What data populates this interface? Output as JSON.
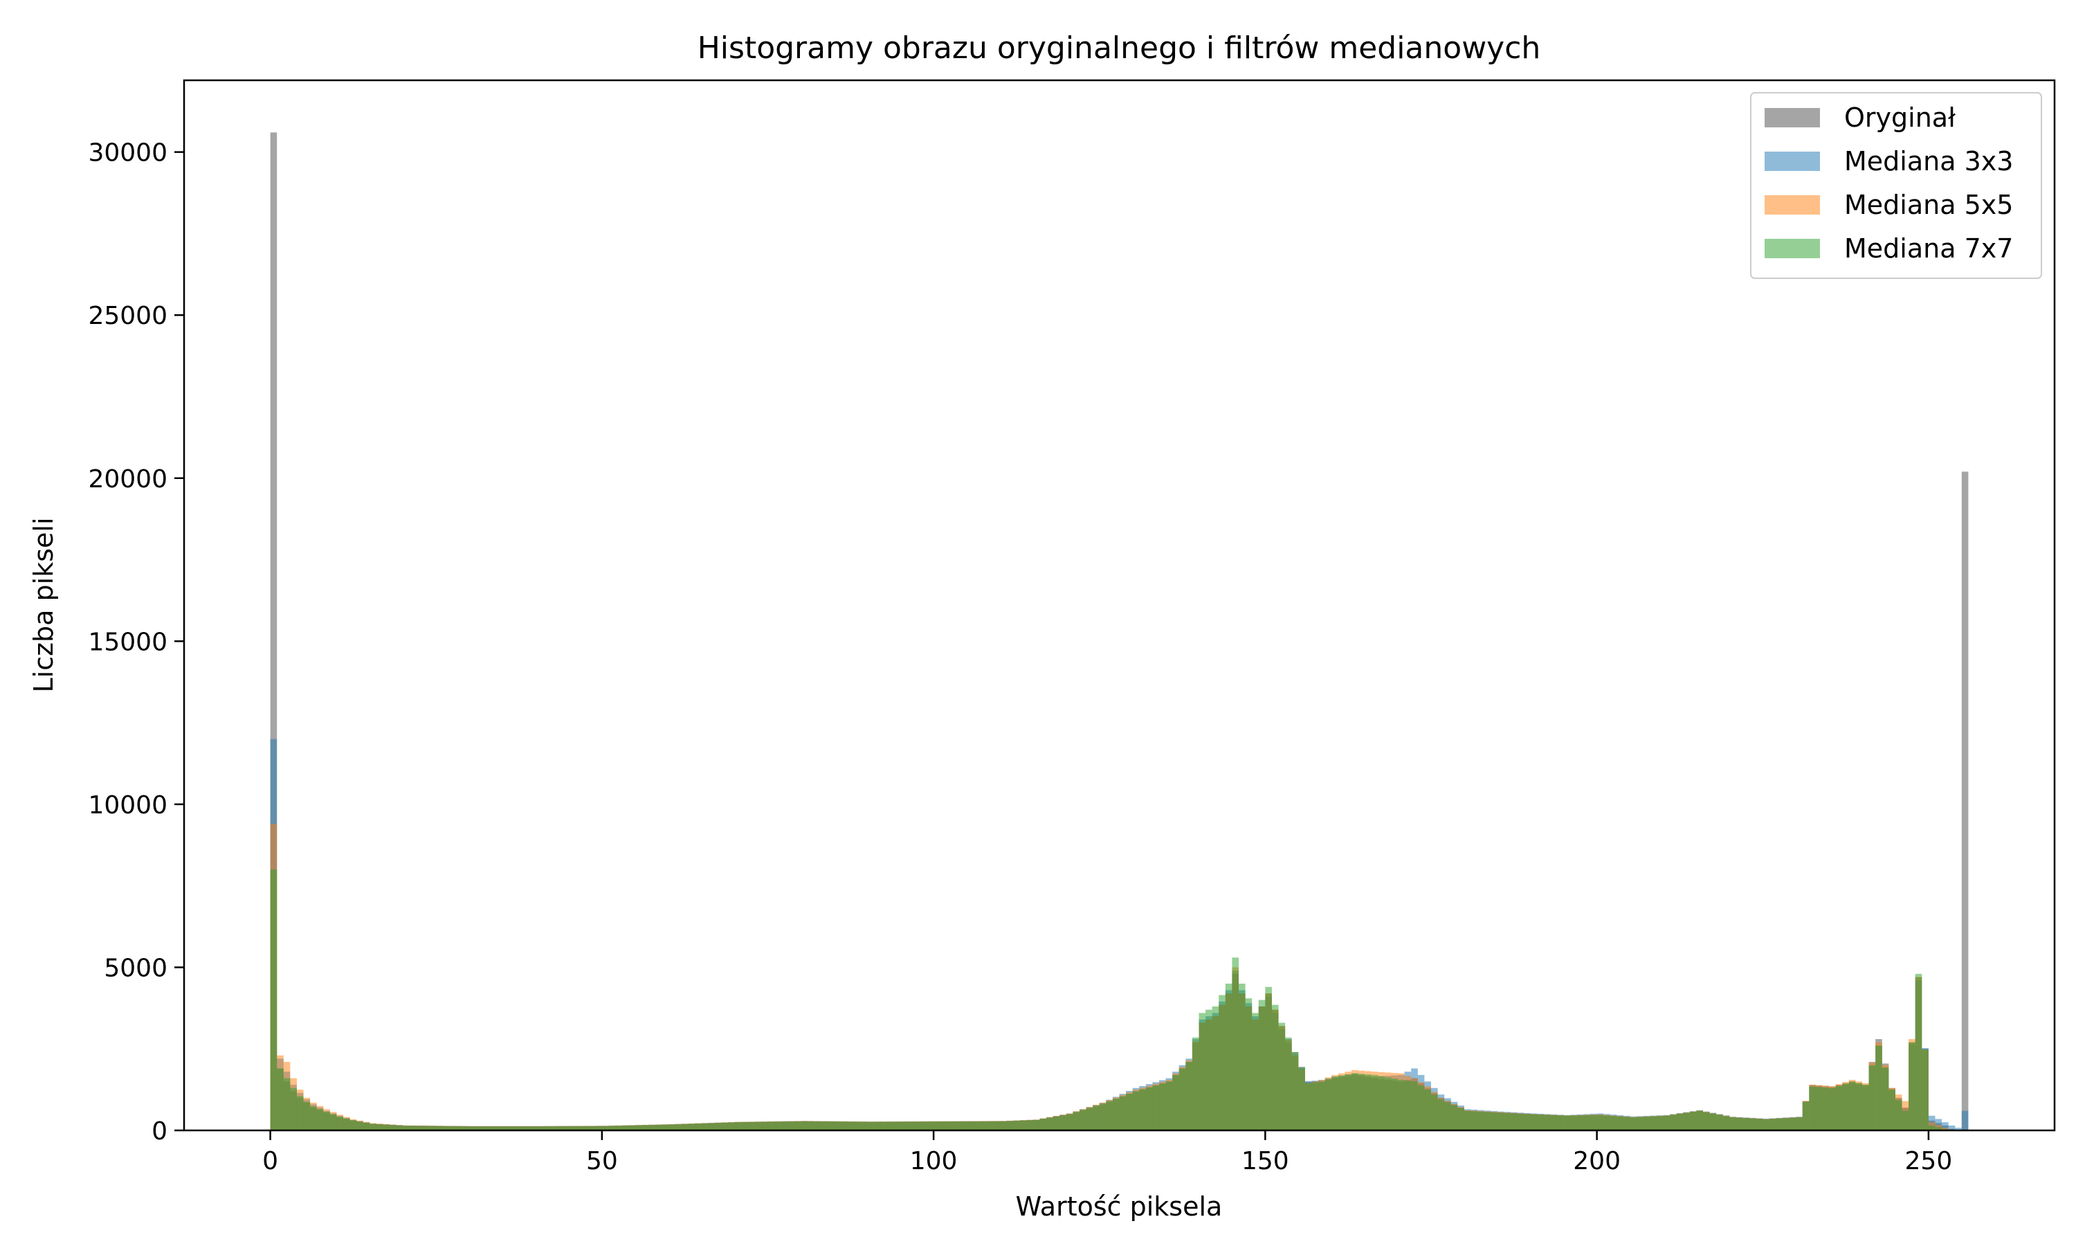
{
  "chart_data": {
    "type": "bar",
    "title": "Histogramy obrazu oryginalnego i filtrów medianowych",
    "xlabel": "Wartość piksela",
    "ylabel": "Liczba pikseli",
    "xlim": [
      -13,
      269
    ],
    "ylim": [
      0,
      32200
    ],
    "xticks": [
      0,
      50,
      100,
      150,
      200,
      250
    ],
    "yticks": [
      0,
      5000,
      10000,
      15000,
      20000,
      25000,
      30000
    ],
    "grid": false,
    "legend_position": "top-right",
    "series": [
      {
        "name": "Oryginał",
        "color": "#7f7f7f",
        "points": [
          [
            0,
            30600
          ],
          [
            1,
            1900
          ],
          [
            2,
            1500
          ],
          [
            3,
            1200
          ],
          [
            4,
            1000
          ],
          [
            5,
            850
          ],
          [
            6,
            700
          ],
          [
            8,
            550
          ],
          [
            10,
            400
          ],
          [
            12,
            300
          ],
          [
            15,
            200
          ],
          [
            20,
            150
          ],
          [
            30,
            130
          ],
          [
            40,
            130
          ],
          [
            50,
            140
          ],
          [
            60,
            180
          ],
          [
            70,
            250
          ],
          [
            80,
            280
          ],
          [
            90,
            260
          ],
          [
            100,
            270
          ],
          [
            110,
            280
          ],
          [
            115,
            320
          ],
          [
            120,
            500
          ],
          [
            125,
            800
          ],
          [
            130,
            1200
          ],
          [
            135,
            1500
          ],
          [
            138,
            2100
          ],
          [
            140,
            3300
          ],
          [
            142,
            3500
          ],
          [
            144,
            4200
          ],
          [
            145,
            4800
          ],
          [
            146,
            4200
          ],
          [
            148,
            3400
          ],
          [
            150,
            4200
          ],
          [
            152,
            3200
          ],
          [
            154,
            2400
          ],
          [
            156,
            1500
          ],
          [
            158,
            1500
          ],
          [
            160,
            1600
          ],
          [
            163,
            1700
          ],
          [
            166,
            1600
          ],
          [
            170,
            1500
          ],
          [
            172,
            1600
          ],
          [
            174,
            1300
          ],
          [
            176,
            1000
          ],
          [
            180,
            600
          ],
          [
            185,
            550
          ],
          [
            190,
            500
          ],
          [
            195,
            450
          ],
          [
            200,
            480
          ],
          [
            205,
            400
          ],
          [
            210,
            450
          ],
          [
            215,
            600
          ],
          [
            220,
            400
          ],
          [
            225,
            350
          ],
          [
            230,
            400
          ],
          [
            232,
            1400
          ],
          [
            235,
            1350
          ],
          [
            238,
            1500
          ],
          [
            240,
            1400
          ],
          [
            242,
            2800
          ],
          [
            244,
            1300
          ],
          [
            246,
            700
          ],
          [
            248,
            4700
          ],
          [
            250,
            300
          ],
          [
            252,
            150
          ],
          [
            253,
            50
          ],
          [
            254,
            20
          ],
          [
            255,
            20200
          ]
        ]
      },
      {
        "name": "Mediana 3x3",
        "color": "#1f77b4",
        "points": [
          [
            0,
            12000
          ],
          [
            1,
            2200
          ],
          [
            2,
            1800
          ],
          [
            3,
            1400
          ],
          [
            4,
            1150
          ],
          [
            5,
            950
          ],
          [
            6,
            800
          ],
          [
            8,
            600
          ],
          [
            10,
            450
          ],
          [
            12,
            320
          ],
          [
            15,
            210
          ],
          [
            20,
            150
          ],
          [
            30,
            130
          ],
          [
            40,
            130
          ],
          [
            50,
            140
          ],
          [
            60,
            190
          ],
          [
            70,
            260
          ],
          [
            80,
            290
          ],
          [
            90,
            270
          ],
          [
            100,
            280
          ],
          [
            110,
            290
          ],
          [
            115,
            330
          ],
          [
            120,
            520
          ],
          [
            125,
            850
          ],
          [
            130,
            1300
          ],
          [
            135,
            1600
          ],
          [
            138,
            2200
          ],
          [
            140,
            3400
          ],
          [
            142,
            3600
          ],
          [
            144,
            4300
          ],
          [
            145,
            4900
          ],
          [
            146,
            4300
          ],
          [
            148,
            3500
          ],
          [
            150,
            4100
          ],
          [
            152,
            3100
          ],
          [
            154,
            2300
          ],
          [
            156,
            1500
          ],
          [
            158,
            1550
          ],
          [
            160,
            1650
          ],
          [
            163,
            1750
          ],
          [
            166,
            1650
          ],
          [
            170,
            1700
          ],
          [
            172,
            1900
          ],
          [
            174,
            1500
          ],
          [
            176,
            1100
          ],
          [
            180,
            650
          ],
          [
            185,
            580
          ],
          [
            190,
            520
          ],
          [
            195,
            470
          ],
          [
            200,
            520
          ],
          [
            205,
            430
          ],
          [
            210,
            470
          ],
          [
            215,
            620
          ],
          [
            220,
            420
          ],
          [
            225,
            360
          ],
          [
            230,
            420
          ],
          [
            232,
            1350
          ],
          [
            235,
            1300
          ],
          [
            238,
            1450
          ],
          [
            240,
            1350
          ],
          [
            242,
            2600
          ],
          [
            244,
            1250
          ],
          [
            246,
            680
          ],
          [
            248,
            4600
          ],
          [
            250,
            450
          ],
          [
            252,
            250
          ],
          [
            253,
            150
          ],
          [
            254,
            80
          ],
          [
            255,
            600
          ]
        ]
      },
      {
        "name": "Mediana 5x5",
        "color": "#ff7f0e",
        "points": [
          [
            0,
            9400
          ],
          [
            1,
            2300
          ],
          [
            2,
            2100
          ],
          [
            3,
            1600
          ],
          [
            4,
            1250
          ],
          [
            5,
            1000
          ],
          [
            6,
            850
          ],
          [
            8,
            650
          ],
          [
            10,
            480
          ],
          [
            12,
            340
          ],
          [
            15,
            220
          ],
          [
            20,
            150
          ],
          [
            30,
            130
          ],
          [
            40,
            130
          ],
          [
            50,
            140
          ],
          [
            60,
            190
          ],
          [
            70,
            260
          ],
          [
            80,
            290
          ],
          [
            90,
            270
          ],
          [
            100,
            280
          ],
          [
            110,
            290
          ],
          [
            115,
            330
          ],
          [
            120,
            520
          ],
          [
            125,
            850
          ],
          [
            130,
            1250
          ],
          [
            135,
            1550
          ],
          [
            138,
            2150
          ],
          [
            140,
            3300
          ],
          [
            142,
            3500
          ],
          [
            144,
            4200
          ],
          [
            145,
            5000
          ],
          [
            146,
            4200
          ],
          [
            148,
            3400
          ],
          [
            150,
            4200
          ],
          [
            152,
            3200
          ],
          [
            154,
            2300
          ],
          [
            156,
            1450
          ],
          [
            158,
            1550
          ],
          [
            160,
            1700
          ],
          [
            163,
            1850
          ],
          [
            166,
            1800
          ],
          [
            170,
            1750
          ],
          [
            172,
            1600
          ],
          [
            174,
            1350
          ],
          [
            176,
            1000
          ],
          [
            180,
            620
          ],
          [
            185,
            560
          ],
          [
            190,
            500
          ],
          [
            195,
            460
          ],
          [
            200,
            490
          ],
          [
            205,
            410
          ],
          [
            210,
            460
          ],
          [
            215,
            610
          ],
          [
            220,
            410
          ],
          [
            225,
            350
          ],
          [
            230,
            410
          ],
          [
            232,
            1400
          ],
          [
            235,
            1350
          ],
          [
            238,
            1550
          ],
          [
            240,
            1450
          ],
          [
            242,
            2700
          ],
          [
            244,
            1300
          ],
          [
            246,
            900
          ],
          [
            248,
            4700
          ],
          [
            250,
            250
          ],
          [
            252,
            80
          ],
          [
            253,
            30
          ],
          [
            254,
            10
          ],
          [
            255,
            0
          ]
        ]
      },
      {
        "name": "Mediana 7x7",
        "color": "#2ca02c",
        "points": [
          [
            0,
            8000
          ],
          [
            1,
            1900
          ],
          [
            2,
            1600
          ],
          [
            3,
            1300
          ],
          [
            4,
            1050
          ],
          [
            5,
            880
          ],
          [
            6,
            740
          ],
          [
            8,
            570
          ],
          [
            10,
            420
          ],
          [
            12,
            310
          ],
          [
            15,
            200
          ],
          [
            20,
            140
          ],
          [
            30,
            120
          ],
          [
            40,
            120
          ],
          [
            50,
            130
          ],
          [
            60,
            180
          ],
          [
            70,
            250
          ],
          [
            80,
            280
          ],
          [
            90,
            260
          ],
          [
            100,
            270
          ],
          [
            110,
            280
          ],
          [
            115,
            320
          ],
          [
            120,
            500
          ],
          [
            125,
            820
          ],
          [
            130,
            1200
          ],
          [
            135,
            1500
          ],
          [
            138,
            2100
          ],
          [
            140,
            3600
          ],
          [
            142,
            3800
          ],
          [
            144,
            4500
          ],
          [
            145,
            5300
          ],
          [
            146,
            4500
          ],
          [
            148,
            3600
          ],
          [
            150,
            4400
          ],
          [
            152,
            3300
          ],
          [
            154,
            2400
          ],
          [
            156,
            1450
          ],
          [
            158,
            1500
          ],
          [
            160,
            1650
          ],
          [
            163,
            1750
          ],
          [
            166,
            1700
          ],
          [
            170,
            1550
          ],
          [
            172,
            1500
          ],
          [
            174,
            1250
          ],
          [
            176,
            950
          ],
          [
            180,
            600
          ],
          [
            185,
            540
          ],
          [
            190,
            490
          ],
          [
            195,
            450
          ],
          [
            200,
            470
          ],
          [
            205,
            400
          ],
          [
            210,
            450
          ],
          [
            215,
            600
          ],
          [
            220,
            400
          ],
          [
            225,
            340
          ],
          [
            230,
            400
          ],
          [
            232,
            1350
          ],
          [
            235,
            1300
          ],
          [
            238,
            1500
          ],
          [
            240,
            1400
          ],
          [
            242,
            2600
          ],
          [
            244,
            1250
          ],
          [
            246,
            600
          ],
          [
            248,
            4800
          ],
          [
            250,
            150
          ],
          [
            252,
            40
          ],
          [
            253,
            10
          ],
          [
            254,
            0
          ],
          [
            255,
            0
          ]
        ]
      }
    ]
  }
}
